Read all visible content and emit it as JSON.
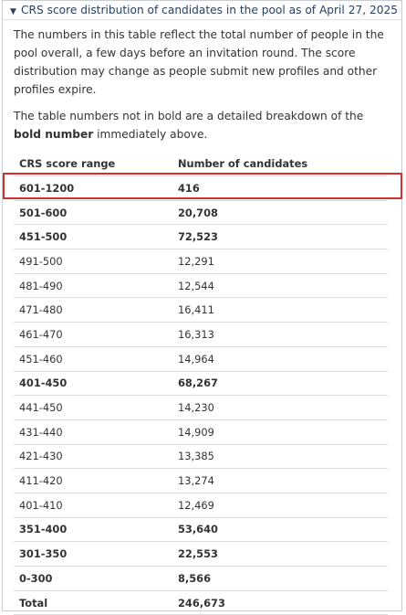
{
  "details": {
    "summary": "CRS score distribution of candidates in the pool as of April 27, 2025",
    "indicator_icon": "triangle-down-icon"
  },
  "intro": {
    "paragraph1": "The numbers in this table reflect the total number of people in the pool overall, a few days before an invitation round. The score distribution may change as people submit new profiles and other profiles expire.",
    "paragraph2_before": "The table numbers not in bold are a detailed breakdown of the ",
    "paragraph2_bold": "bold number",
    "paragraph2_after": " immediately above."
  },
  "table": {
    "headers": [
      "CRS score range",
      "Number of candidates"
    ],
    "rows": [
      {
        "range": "601-1200",
        "count": "416",
        "bold": true
      },
      {
        "range": "501-600",
        "count": "20,708",
        "bold": true,
        "highlighted": true
      },
      {
        "range": "451-500",
        "count": "72,523",
        "bold": true
      },
      {
        "range": "491-500",
        "count": "12,291",
        "bold": false
      },
      {
        "range": "481-490",
        "count": "12,544",
        "bold": false
      },
      {
        "range": "471-480",
        "count": "16,411",
        "bold": false
      },
      {
        "range": "461-470",
        "count": "16,313",
        "bold": false
      },
      {
        "range": "451-460",
        "count": "14,964",
        "bold": false
      },
      {
        "range": "401-450",
        "count": "68,267",
        "bold": true
      },
      {
        "range": "441-450",
        "count": "14,230",
        "bold": false
      },
      {
        "range": "431-440",
        "count": "14,909",
        "bold": false
      },
      {
        "range": "421-430",
        "count": "13,385",
        "bold": false
      },
      {
        "range": "411-420",
        "count": "13,274",
        "bold": false
      },
      {
        "range": "401-410",
        "count": "12,469",
        "bold": false
      },
      {
        "range": "351-400",
        "count": "53,640",
        "bold": true
      },
      {
        "range": "301-350",
        "count": "22,553",
        "bold": true
      },
      {
        "range": "0-300",
        "count": "8,566",
        "bold": true
      },
      {
        "range": "Total",
        "count": "246,673",
        "bold": true
      }
    ]
  },
  "colors": {
    "summary_text": "#284162",
    "highlight_border": "#d32f2f",
    "body_text": "#333333"
  }
}
